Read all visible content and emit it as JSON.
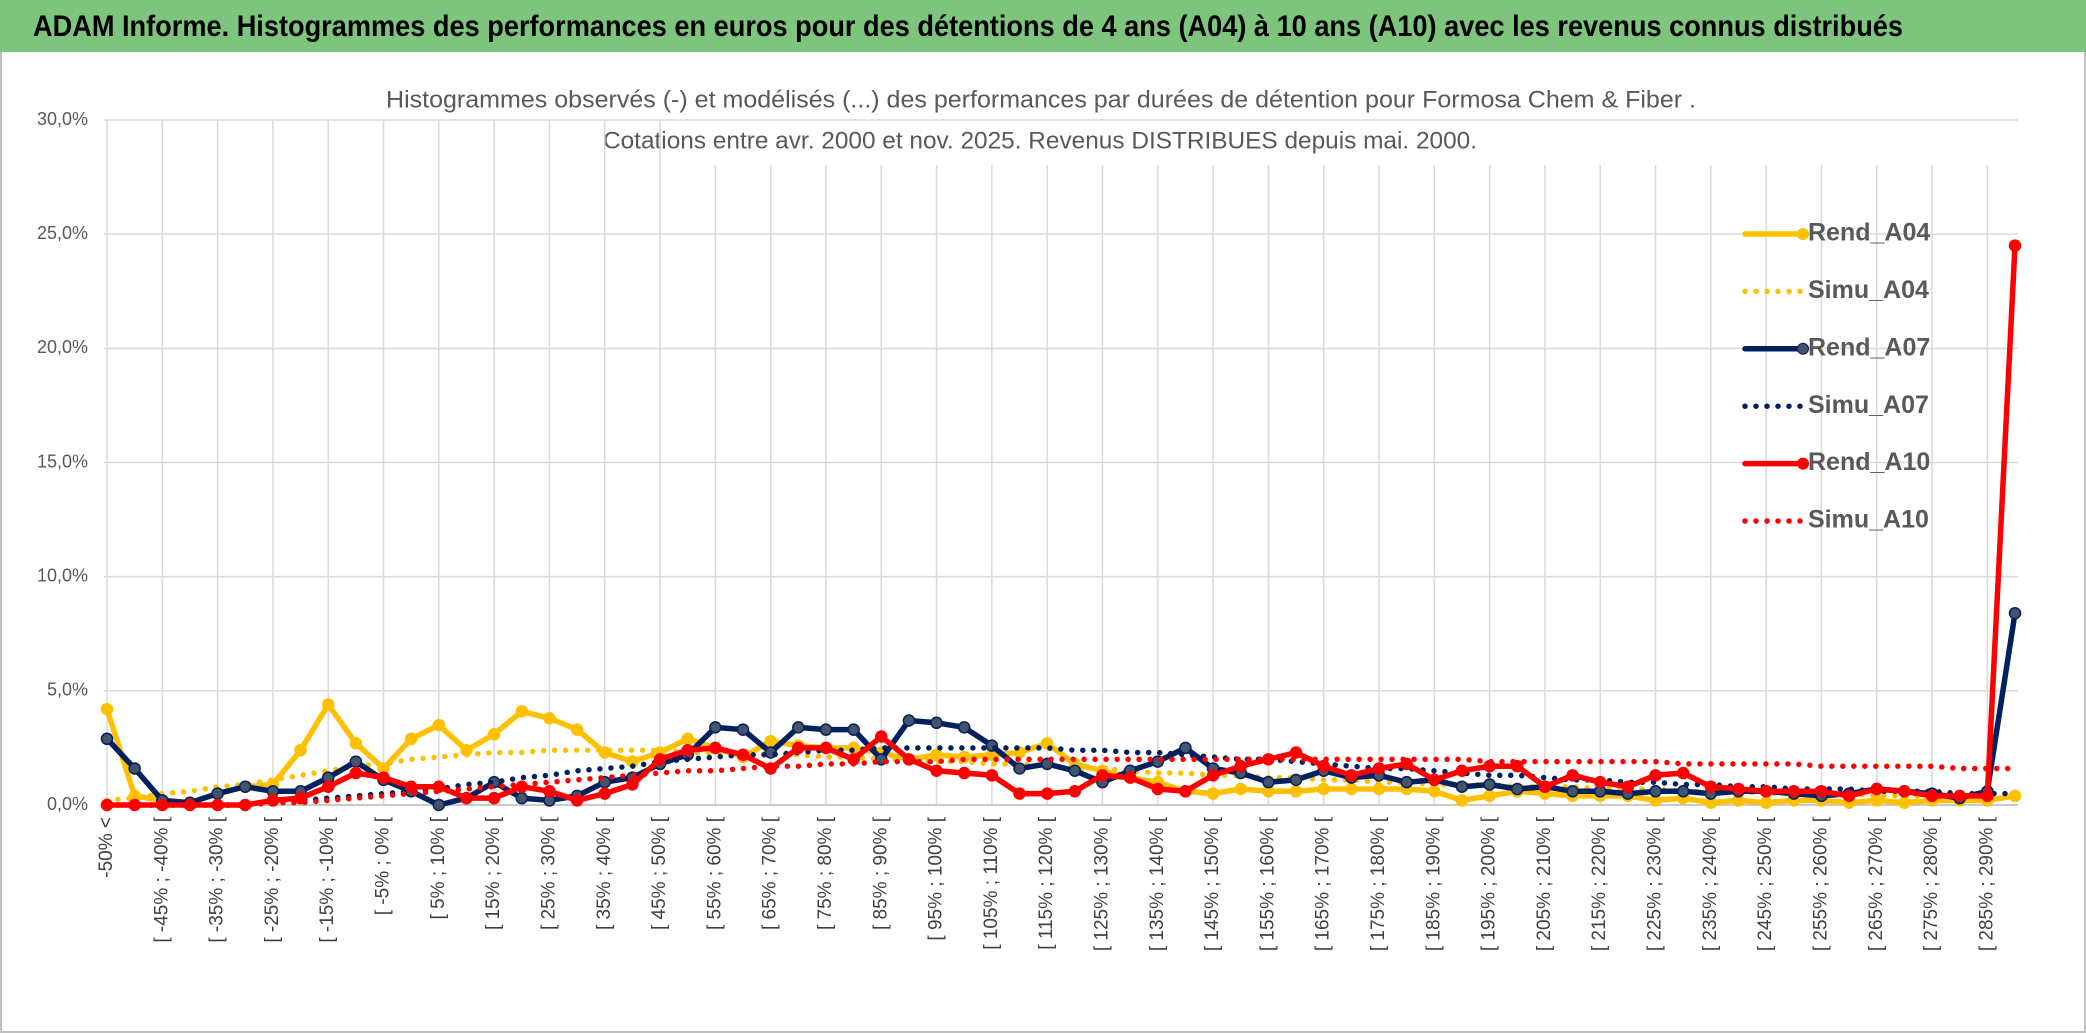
{
  "header": {
    "title": "ADAM Informe. Histogrammes des performances en euros pour des détentions de 4 ans (A04) à 10 ans (A10) avec les revenus connus distribués"
  },
  "chart_data": {
    "type": "line",
    "title": "Histogrammes observés (-) et modélisés (...) des performances par durées de détention pour Formosa Chem & Fiber .",
    "subtitle": "Cotations entre avr. 2000 et nov. 2025. Revenus DISTRIBUES depuis mai. 2000.",
    "categories": [
      "-50% <",
      null,
      "[ -45% ; -40% [",
      null,
      "[ -35% ; -30% [",
      null,
      "[ -25% ; -20% [",
      null,
      "[ -15% ; -10% [",
      null,
      "[ -5% ; 0% [",
      null,
      "[ 5% ; 10% [",
      null,
      "[ 15% ; 20% [",
      null,
      "[ 25% ; 30% [",
      null,
      "[ 35% ; 40% [",
      null,
      "[ 45% ; 50% [",
      null,
      "[ 55% ; 60% [",
      null,
      "[ 65% ; 70% [",
      null,
      "[ 75% ; 80% [",
      null,
      "[ 85% ; 90% [",
      null,
      "[ 95% ; 100% [",
      null,
      "[ 105% ; 110% [",
      null,
      "[ 115% ; 120% [",
      null,
      "[ 125% ; 130% [",
      null,
      "[ 135% ; 140% [",
      null,
      "[ 145% ; 150% [",
      null,
      "[ 155% ; 160% [",
      null,
      "[ 165% ; 170% [",
      null,
      "[ 175% ; 180% [",
      null,
      "[ 185% ; 190% [",
      null,
      "[ 195% ; 200% [",
      null,
      "[ 205% ; 210% [",
      null,
      "[ 215% ; 220% [",
      null,
      "[ 225% ; 230% [",
      null,
      "[ 235% ; 240% [",
      null,
      "[ 245% ; 250% [",
      null,
      "[ 255% ; 260% [",
      null,
      "[ 265% ; 270% [",
      null,
      "[ 275% ; 280% [",
      null,
      "[ 285% ; 290% [",
      null
    ],
    "ylim": [
      0,
      30
    ],
    "yticks": [
      {
        "value": 0,
        "label": "0,0%"
      },
      {
        "value": 5,
        "label": "5,0%"
      },
      {
        "value": 10,
        "label": "10,0%"
      },
      {
        "value": 15,
        "label": "15,0%"
      },
      {
        "value": 20,
        "label": "20,0%"
      },
      {
        "value": 25,
        "label": "25,0%"
      },
      {
        "value": 30,
        "label": "30,0%"
      }
    ],
    "grid": true,
    "legend": "right",
    "series": [
      {
        "name": "Rend_A04",
        "color": "#FFC000",
        "style": "solid",
        "marker": true,
        "values": [
          4.2,
          0.4,
          0.2,
          0.1,
          0.5,
          0.8,
          0.9,
          2.4,
          4.4,
          2.7,
          1.6,
          2.9,
          3.5,
          2.4,
          3.1,
          4.1,
          3.8,
          3.3,
          2.3,
          1.9,
          2.3,
          2.9,
          2.5,
          2.1,
          2.8,
          2.6,
          2.5,
          2.5,
          2.3,
          2.0,
          2.2,
          2.1,
          2.2,
          2.3,
          2.7,
          1.8,
          1.5,
          1.2,
          1.0,
          0.6,
          0.5,
          0.7,
          0.6,
          0.6,
          0.7,
          0.7,
          0.7,
          0.7,
          0.6,
          0.2,
          0.4,
          0.6,
          0.5,
          0.4,
          0.4,
          0.4,
          0.2,
          0.3,
          0.1,
          0.2,
          0.1,
          0.2,
          0.2,
          0.1,
          0.2,
          0.1,
          0.2,
          0.2,
          0.2,
          0.4
        ]
      },
      {
        "name": "Simu_A04",
        "color": "#FFC000",
        "style": "dotted",
        "marker": false,
        "values": [
          0.2,
          0.3,
          0.5,
          0.6,
          0.8,
          0.9,
          1.1,
          1.3,
          1.5,
          1.7,
          1.8,
          2.0,
          2.1,
          2.2,
          2.3,
          2.3,
          2.4,
          2.4,
          2.4,
          2.4,
          2.4,
          2.3,
          2.3,
          2.3,
          2.2,
          2.2,
          2.1,
          2.1,
          2.0,
          2.0,
          1.9,
          1.9,
          1.8,
          1.8,
          1.7,
          1.6,
          1.6,
          1.5,
          1.4,
          1.4,
          1.3,
          1.3,
          1.2,
          1.2,
          1.1,
          1.1,
          1.0,
          1.0,
          0.9,
          0.9,
          0.9,
          0.8,
          0.8,
          0.8,
          0.7,
          0.7,
          0.7,
          0.6,
          0.6,
          0.6,
          0.5,
          0.5,
          0.5,
          0.5,
          0.4,
          0.4,
          0.4,
          0.4,
          0.4,
          0.3
        ]
      },
      {
        "name": "Rend_A07",
        "color": "#002060",
        "style": "solid",
        "marker": true,
        "values": [
          2.9,
          1.6,
          0.2,
          0.1,
          0.5,
          0.8,
          0.6,
          0.6,
          1.2,
          1.9,
          1.1,
          0.6,
          0.0,
          0.3,
          1.0,
          0.3,
          0.2,
          0.4,
          1.0,
          1.2,
          1.8,
          2.2,
          3.4,
          3.3,
          2.3,
          3.4,
          3.3,
          3.3,
          2.0,
          3.7,
          3.6,
          3.4,
          2.6,
          1.6,
          1.8,
          1.5,
          1.0,
          1.5,
          1.9,
          2.5,
          1.6,
          1.4,
          1.0,
          1.1,
          1.5,
          1.2,
          1.3,
          1.0,
          1.1,
          0.8,
          0.9,
          0.7,
          0.8,
          0.6,
          0.6,
          0.5,
          0.6,
          0.6,
          0.5,
          0.6,
          0.6,
          0.5,
          0.4,
          0.5,
          0.7,
          0.6,
          0.5,
          0.3,
          0.6,
          8.4
        ]
      },
      {
        "name": "Simu_A07",
        "color": "#002060",
        "style": "dotted",
        "marker": false,
        "values": [
          0,
          0,
          0,
          0,
          0,
          0,
          0.1,
          0.2,
          0.3,
          0.4,
          0.5,
          0.6,
          0.7,
          0.9,
          1.0,
          1.2,
          1.3,
          1.5,
          1.6,
          1.7,
          1.9,
          2.0,
          2.1,
          2.2,
          2.2,
          2.3,
          2.4,
          2.4,
          2.5,
          2.5,
          2.5,
          2.5,
          2.5,
          2.5,
          2.5,
          2.4,
          2.4,
          2.3,
          2.3,
          2.2,
          2.1,
          2.0,
          2.0,
          1.9,
          1.8,
          1.7,
          1.6,
          1.6,
          1.5,
          1.4,
          1.3,
          1.3,
          1.2,
          1.1,
          1.1,
          1.0,
          1.0,
          0.9,
          0.9,
          0.8,
          0.8,
          0.7,
          0.7,
          0.7,
          0.6,
          0.6,
          0.6,
          0.5,
          0.5,
          0.5
        ]
      },
      {
        "name": "Rend_A10",
        "color": "#FF0000",
        "style": "solid",
        "marker": true,
        "values": [
          0,
          0,
          0,
          0,
          0,
          0,
          0.2,
          0.3,
          0.8,
          1.4,
          1.2,
          0.8,
          0.8,
          0.3,
          0.3,
          0.8,
          0.6,
          0.2,
          0.5,
          0.9,
          2.0,
          2.4,
          2.5,
          2.2,
          1.6,
          2.5,
          2.5,
          2.0,
          3.0,
          2.0,
          1.5,
          1.4,
          1.3,
          0.5,
          0.5,
          0.6,
          1.3,
          1.2,
          0.7,
          0.6,
          1.3,
          1.7,
          2.0,
          2.3,
          1.7,
          1.3,
          1.6,
          1.8,
          1.1,
          1.5,
          1.7,
          1.7,
          0.8,
          1.3,
          1.0,
          0.8,
          1.3,
          1.4,
          0.8,
          0.7,
          0.6,
          0.6,
          0.6,
          0.4,
          0.7,
          0.6,
          0.4,
          0.4,
          0.4,
          24.5
        ]
      },
      {
        "name": "Simu_A10",
        "color": "#FF0000",
        "style": "dotted",
        "marker": false,
        "values": [
          0,
          0,
          0,
          0,
          0,
          0,
          0.1,
          0.1,
          0.2,
          0.3,
          0.4,
          0.5,
          0.6,
          0.7,
          0.8,
          0.9,
          1.0,
          1.1,
          1.2,
          1.3,
          1.4,
          1.5,
          1.5,
          1.6,
          1.7,
          1.7,
          1.8,
          1.8,
          1.9,
          1.9,
          1.9,
          2.0,
          2.0,
          2.0,
          2.0,
          2.0,
          2.0,
          2.0,
          2.0,
          2.0,
          2.0,
          2.0,
          2.0,
          2.0,
          2.0,
          2.0,
          2.0,
          2.0,
          2.0,
          2.0,
          1.9,
          1.9,
          1.9,
          1.9,
          1.9,
          1.9,
          1.9,
          1.8,
          1.8,
          1.8,
          1.8,
          1.8,
          1.7,
          1.7,
          1.7,
          1.7,
          1.7,
          1.6,
          1.6,
          1.6
        ]
      }
    ]
  }
}
